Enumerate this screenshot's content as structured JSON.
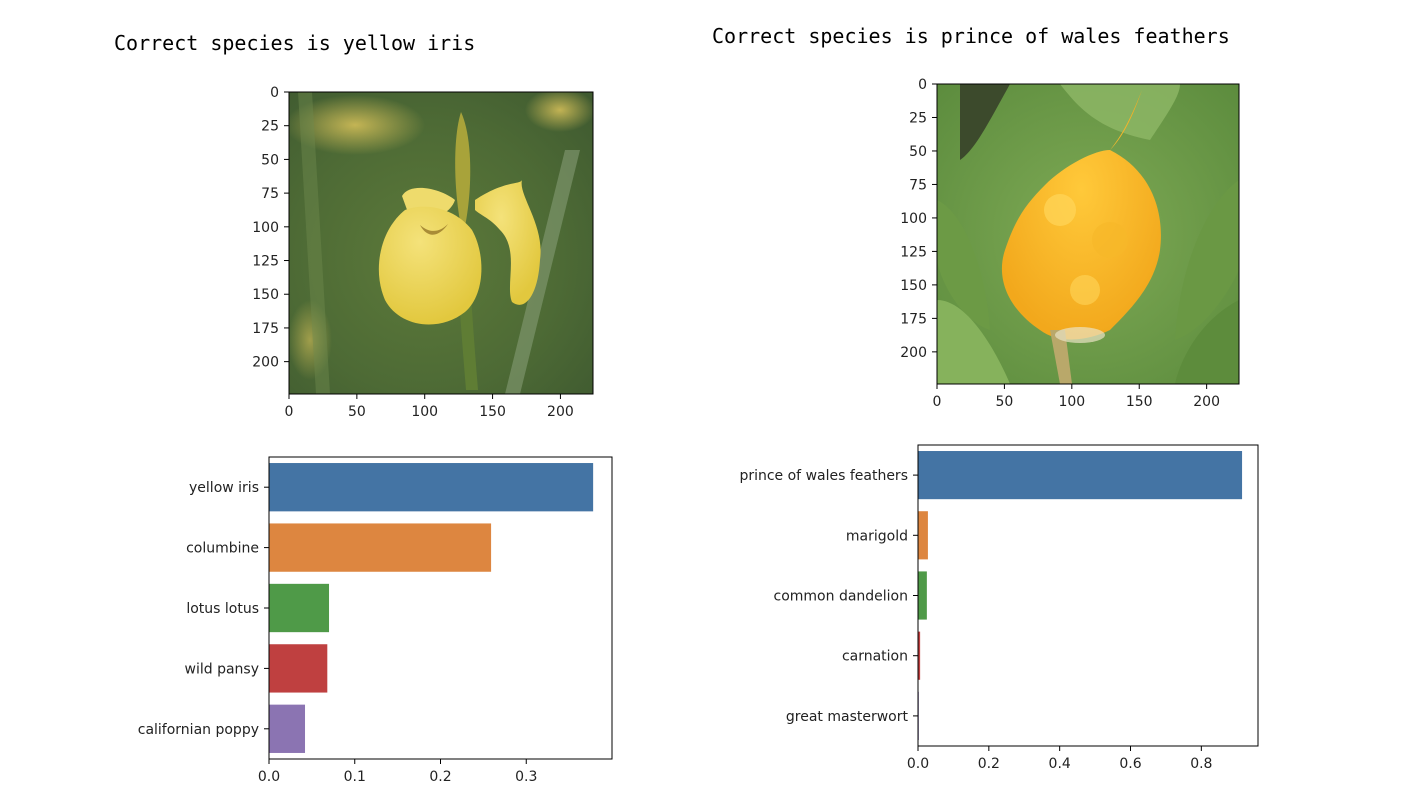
{
  "panels": [
    {
      "title": "Correct species is yellow iris",
      "image": {
        "name": "yellow-iris-photo",
        "axis_max": 224,
        "x_ticks": [
          0,
          50,
          100,
          150,
          200
        ],
        "y_ticks": [
          0,
          25,
          50,
          75,
          100,
          125,
          150,
          175,
          200
        ]
      }
    },
    {
      "title": "Correct species is prince of wales feathers",
      "image": {
        "name": "prince-of-wales-feathers-photo",
        "axis_max": 224,
        "x_ticks": [
          0,
          50,
          100,
          150,
          200
        ],
        "y_ticks": [
          0,
          25,
          50,
          75,
          100,
          125,
          150,
          175,
          200
        ]
      }
    }
  ],
  "chart_data": [
    {
      "type": "bar",
      "orientation": "horizontal",
      "categories": [
        "yellow iris",
        "columbine",
        "lotus lotus",
        "wild pansy",
        "californian poppy"
      ],
      "values": [
        0.378,
        0.259,
        0.07,
        0.068,
        0.042
      ],
      "colors": [
        "#4474a4",
        "#dd8640",
        "#4f9a48",
        "#bf4040",
        "#8b74b2"
      ],
      "xlim": [
        0,
        0.4
      ],
      "x_ticks": [
        0.0,
        0.1,
        0.2,
        0.3
      ],
      "x_tick_labels": [
        "0.0",
        "0.1",
        "0.2",
        "0.3"
      ],
      "title": "",
      "xlabel": "",
      "ylabel": ""
    },
    {
      "type": "bar",
      "orientation": "horizontal",
      "categories": [
        "prince of wales feathers",
        "marigold",
        "common dandelion",
        "carnation",
        "great masterwort"
      ],
      "values": [
        0.915,
        0.028,
        0.025,
        0.006,
        0.002
      ],
      "colors": [
        "#4474a4",
        "#dd8640",
        "#4f9a48",
        "#bf4040",
        "#8b74b2"
      ],
      "xlim": [
        0,
        0.96
      ],
      "x_ticks": [
        0.0,
        0.2,
        0.4,
        0.6,
        0.8
      ],
      "x_tick_labels": [
        "0.0",
        "0.2",
        "0.4",
        "0.6",
        "0.8"
      ],
      "title": "",
      "xlabel": "",
      "ylabel": ""
    }
  ]
}
